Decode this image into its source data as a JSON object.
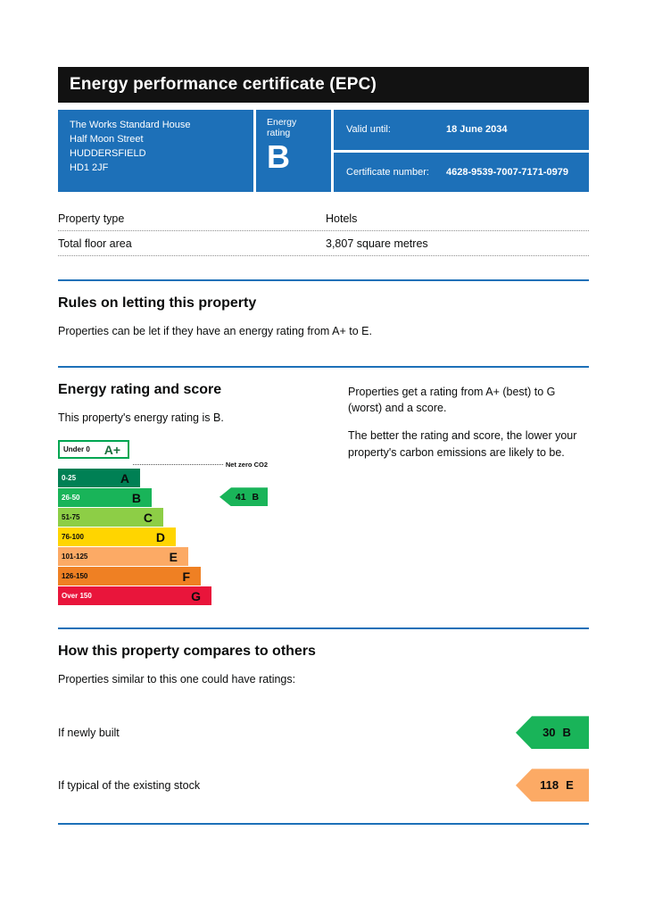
{
  "header": {
    "title": "Energy performance certificate (EPC)"
  },
  "summary": {
    "address_lines": [
      "The Works Standard House",
      "Half Moon Street",
      "HUDDERSFIELD",
      "HD1 2JF"
    ],
    "energy_rating_label": "Energy rating",
    "energy_rating_value": "B",
    "valid_until_label": "Valid until:",
    "valid_until_value": "18 June 2034",
    "certificate_number_label": "Certificate number:",
    "certificate_number_value": "4628-9539-7007-7171-0979"
  },
  "property_details": {
    "rows": [
      {
        "label": "Property type",
        "value": "Hotels"
      },
      {
        "label": "Total floor area",
        "value": "3,807 square metres"
      }
    ]
  },
  "rules_section": {
    "heading": "Rules on letting this property",
    "body": "Properties can be let if they have an energy rating from A+ to E."
  },
  "rating_section": {
    "heading": "Energy rating and score",
    "property_rating_text": "This property's energy rating is B.",
    "info_paragraph_1": "Properties get a rating from A+ (best) to G (worst) and a score.",
    "info_paragraph_2": "The better the rating and score, the lower your property's carbon emissions are likely to be.",
    "net_zero_label": "Net zero CO2",
    "current_score": "41",
    "current_band": "B"
  },
  "chart_data": {
    "type": "epc-rating-scale",
    "bands": [
      {
        "range": "Under 0",
        "letter": "A+",
        "color": "#ffffff",
        "border": "#00a651"
      },
      {
        "range": "0-25",
        "letter": "A",
        "color": "#008054"
      },
      {
        "range": "26-50",
        "letter": "B",
        "color": "#19b459"
      },
      {
        "range": "51-75",
        "letter": "C",
        "color": "#8dce46"
      },
      {
        "range": "76-100",
        "letter": "D",
        "color": "#ffd500"
      },
      {
        "range": "101-125",
        "letter": "E",
        "color": "#fcaa65"
      },
      {
        "range": "126-150",
        "letter": "F",
        "color": "#ef8023"
      },
      {
        "range": "Over 150",
        "letter": "G",
        "color": "#e9153b"
      }
    ],
    "current": {
      "score": 41,
      "band": "B"
    },
    "indicator_color": "#19b459"
  },
  "compare_section": {
    "heading": "How this property compares to others",
    "intro": "Properties similar to this one could have ratings:",
    "rows": [
      {
        "label": "If newly built",
        "score": "30",
        "band": "B",
        "color": "#19b459"
      },
      {
        "label": "If typical of the existing stock",
        "score": "118",
        "band": "E",
        "color": "#fcaa65"
      }
    ]
  },
  "colors": {
    "header_bar": "#121212",
    "brand_blue": "#1d70b8"
  }
}
